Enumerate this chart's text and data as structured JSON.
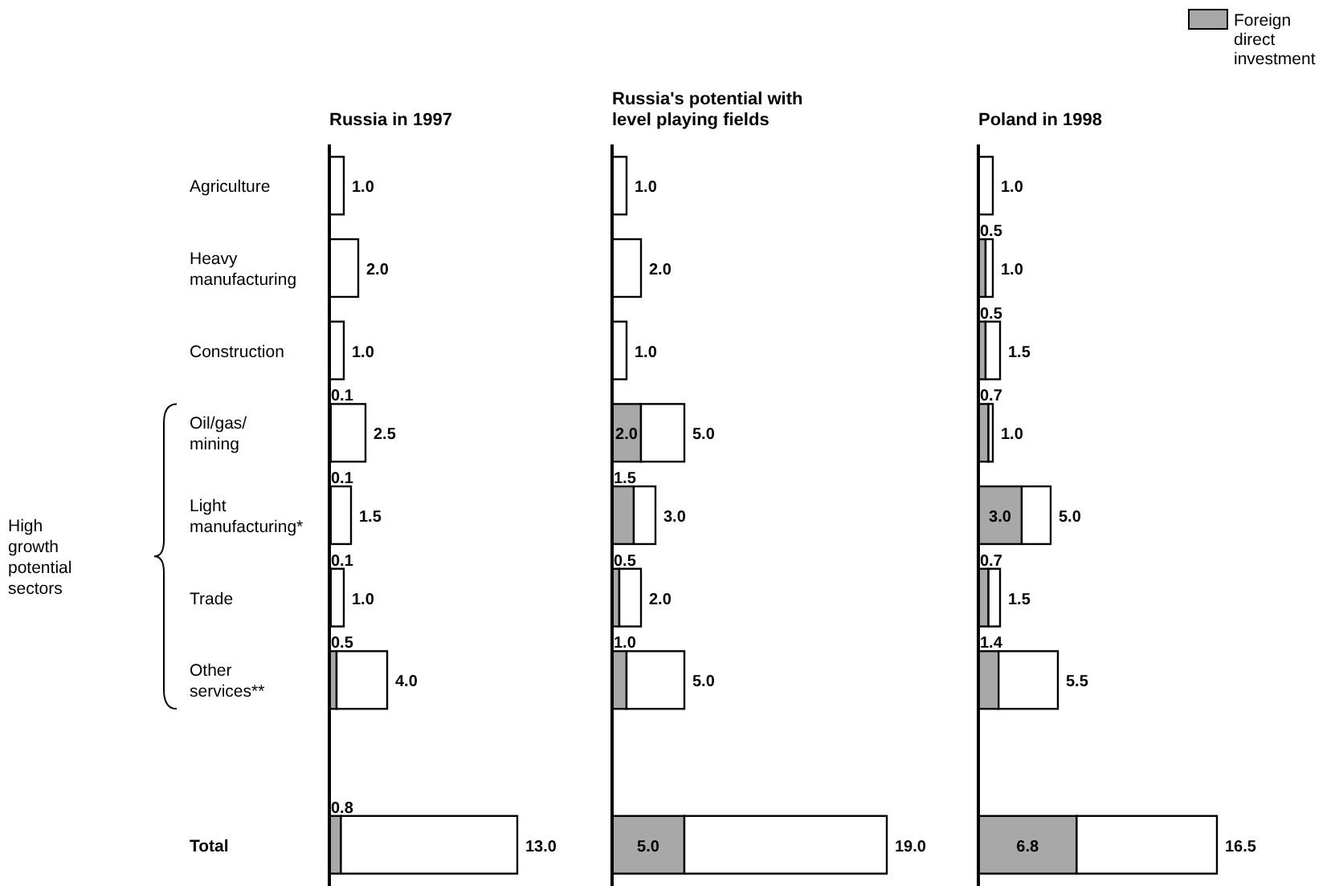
{
  "chart_data": [
    {
      "type": "bar",
      "orientation": "horizontal",
      "stacked": true,
      "title": "Russia in 1997",
      "categories": [
        "Agriculture",
        "Heavy manufacturing",
        "Construction",
        "Oil/gas/mining",
        "Light manufacturing*",
        "Trade",
        "Other services**",
        null,
        "Total"
      ],
      "tick_labels": "y",
      "series": [
        {
          "color": "#a8a8a8",
          "values": [
            null,
            null,
            null,
            0.1,
            0.1,
            0.1,
            0.5,
            null,
            0.8
          ],
          "value_labels": [
            null,
            null,
            null,
            "0.1",
            "0.1",
            "0.1",
            "0.5",
            null,
            "0.8"
          ]
        },
        {
          "color": "#ffffff",
          "values": [
            1.0,
            2.0,
            1.0,
            2.4,
            1.4,
            0.9,
            3.5,
            null,
            12.2
          ]
        }
      ],
      "totals": [
        "1.0",
        "2.0",
        "1.0",
        "2.5",
        "1.5",
        "1.0",
        "4.0",
        null,
        "13.0"
      ],
      "annotations": [
        "High growth potential sectors"
      ]
    },
    {
      "type": "bar",
      "orientation": "horizontal",
      "stacked": true,
      "title": "Russia's potential with level playing fields",
      "tick_labels": false,
      "series": [
        {
          "color": "#a8a8a8",
          "values": [
            null,
            null,
            null,
            2.0,
            1.5,
            0.5,
            1.0,
            null,
            5.0
          ],
          "value_labels": [
            null,
            null,
            null,
            "2.0",
            "1.5",
            "0.5",
            "1.0",
            null,
            "5.0"
          ]
        },
        {
          "color": "#ffffff",
          "values": [
            1.0,
            2.0,
            1.0,
            3.0,
            1.5,
            1.5,
            4.0,
            null,
            14.0
          ]
        }
      ],
      "totals": [
        "1.0",
        "2.0",
        "1.0",
        "5.0",
        "3.0",
        "2.0",
        "5.0",
        null,
        "19.0"
      ]
    },
    {
      "type": "bar",
      "orientation": "horizontal",
      "stacked": true,
      "title": "Poland in 1998",
      "tick_labels": false,
      "legend": "top right",
      "series": [
        {
          "name": "Foreign direct investment",
          "color": "#a8a8a8",
          "values": [
            null,
            0.5,
            0.5,
            0.7,
            3.0,
            0.7,
            1.4,
            null,
            6.8
          ],
          "value_labels": [
            null,
            "0.5",
            "0.5",
            "0.7",
            "3.0",
            "0.7",
            "1.4",
            null,
            "6.8"
          ]
        },
        {
          "color": "#ffffff",
          "values": [
            1.0,
            0.5,
            1.0,
            0.3,
            2.0,
            0.8,
            4.1,
            null,
            9.7
          ]
        }
      ],
      "totals": [
        "1.0",
        "1.0",
        "1.5",
        "1.0",
        "5.0",
        "1.5",
        "5.5",
        null,
        "16.5"
      ]
    }
  ]
}
